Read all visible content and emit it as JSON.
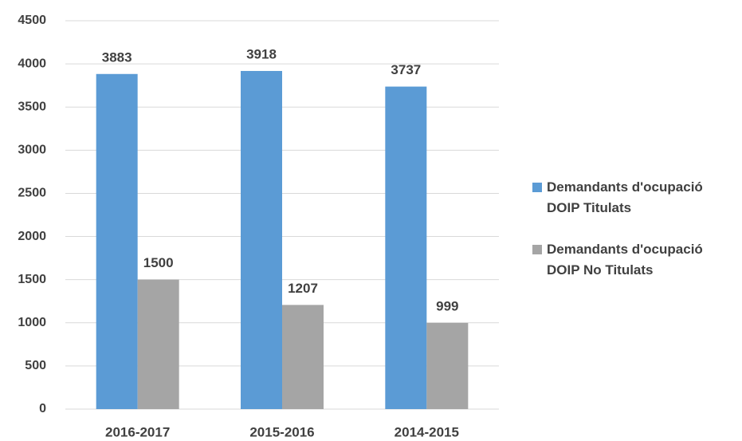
{
  "chart_data": {
    "type": "bar",
    "categories": [
      "2016-2017",
      "2015-2016",
      "2014-2015"
    ],
    "series": [
      {
        "name": "Demandants d'ocupació DOIP Titulats",
        "color": "#5b9bd5",
        "values": [
          3883,
          3918,
          3737
        ]
      },
      {
        "name": "Demandants d'ocupació DOIP No Titulats",
        "color": "#a5a5a5",
        "values": [
          1500,
          1207,
          999
        ]
      }
    ],
    "ylim": [
      0,
      4500
    ],
    "yticks": [
      0,
      500,
      1000,
      1500,
      2000,
      2500,
      3000,
      3500,
      4000,
      4500
    ],
    "grid": true,
    "legend": "right"
  }
}
